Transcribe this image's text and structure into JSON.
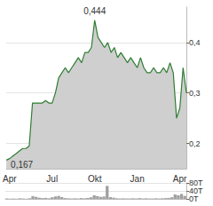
{
  "chart_data": [
    {
      "type": "area",
      "categories": [
        null,
        "Apr",
        null,
        null,
        null,
        null,
        null,
        null,
        null,
        null,
        null,
        null,
        null,
        null,
        "Jul",
        null,
        null,
        null,
        null,
        null,
        null,
        null,
        null,
        null,
        null,
        null,
        null,
        "Okt",
        null,
        null,
        null,
        null,
        null,
        null,
        null,
        null,
        null,
        null,
        null,
        null,
        "Jan",
        null,
        null,
        null,
        null,
        null,
        null,
        null,
        null,
        null,
        null,
        null,
        null,
        "Apr",
        null,
        null
      ],
      "values": [
        0.167,
        0.17,
        0.175,
        0.18,
        0.185,
        0.19,
        0.19,
        0.195,
        0.28,
        0.28,
        0.28,
        0.28,
        0.285,
        0.28,
        0.28,
        0.3,
        0.33,
        0.34,
        0.35,
        0.34,
        0.35,
        0.36,
        0.37,
        0.36,
        0.38,
        0.38,
        0.39,
        0.444,
        0.41,
        0.4,
        0.39,
        0.4,
        0.38,
        0.39,
        0.37,
        0.38,
        0.37,
        0.36,
        0.37,
        0.36,
        0.35,
        0.37,
        0.35,
        0.34,
        0.34,
        0.35,
        0.34,
        0.34,
        0.35,
        0.34,
        0.36,
        0.34,
        0.25,
        0.27,
        0.35,
        0.3
      ],
      "color": "#2e7d32",
      "ylim": [
        0.15,
        0.47
      ],
      "yticks": [
        {
          "value": 0.2,
          "label": "0,2"
        },
        {
          "value": 0.3,
          "label": "0,3"
        },
        {
          "value": 0.4,
          "label": "0,4"
        }
      ],
      "annotations": [
        {
          "value": 0.444,
          "text": "0,444"
        },
        {
          "value": 0.167,
          "text": "0,167"
        }
      ],
      "grid": true
    },
    {
      "type": "bar",
      "categories": [
        null,
        "Apr",
        null,
        null,
        null,
        null,
        null,
        null,
        null,
        null,
        null,
        null,
        null,
        null,
        "Jul",
        null,
        null,
        null,
        null,
        null,
        null,
        null,
        null,
        null,
        null,
        null,
        null,
        "Okt",
        null,
        null,
        null,
        null,
        null,
        null,
        null,
        null,
        null,
        null,
        null,
        null,
        "Jan",
        null,
        null,
        null,
        null,
        null,
        null,
        null,
        null,
        null,
        null,
        null,
        null,
        "Apr",
        null,
        null
      ],
      "values": [
        2,
        1,
        2,
        1,
        3,
        2,
        1,
        3,
        14,
        10,
        6,
        4,
        5,
        3,
        8,
        12,
        15,
        9,
        4,
        3,
        2,
        3,
        2,
        4,
        3,
        5,
        8,
        18,
        14,
        10,
        12,
        65,
        9,
        6,
        3,
        2,
        3,
        2,
        2,
        3,
        2,
        4,
        2,
        3,
        2,
        2,
        3,
        2,
        3,
        4,
        5,
        8,
        22,
        18,
        25,
        15
      ],
      "color": "#a0a0a0",
      "ylim": [
        0,
        80
      ],
      "yticks": [
        {
          "value": 0,
          "label": "0T"
        },
        {
          "value": 40,
          "label": "40T"
        },
        {
          "value": 80,
          "label": "80T"
        }
      ],
      "tick_labels": "y",
      "grid": true
    }
  ]
}
